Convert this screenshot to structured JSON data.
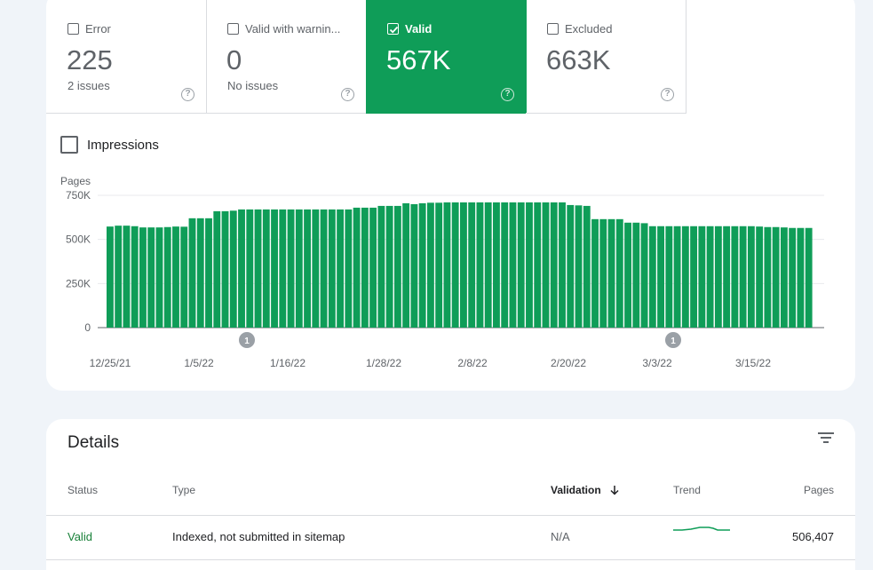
{
  "tiles": [
    {
      "label": "Error",
      "value": "225",
      "sub": "2 issues",
      "checked": false
    },
    {
      "label": "Valid with warnin...",
      "value": "0",
      "sub": "No issues",
      "checked": false
    },
    {
      "label": "Valid",
      "value": "567K",
      "sub": "",
      "checked": true
    },
    {
      "label": "Excluded",
      "value": "663K",
      "sub": "",
      "checked": false
    }
  ],
  "help_glyph": "?",
  "impressions_label": "Impressions",
  "chart_data": {
    "type": "bar",
    "ylabel": "Pages",
    "yticks": [
      "0",
      "250K",
      "500K",
      "750K"
    ],
    "ylim": [
      0,
      750000
    ],
    "xticks": [
      "12/25/21",
      "1/5/22",
      "1/16/22",
      "1/28/22",
      "2/8/22",
      "2/20/22",
      "3/3/22",
      "3/15/22"
    ],
    "bar_color": "#0f9d58",
    "grid": true,
    "annotations": [
      "1",
      "1"
    ],
    "values": [
      573000,
      578000,
      578000,
      575000,
      568000,
      568000,
      568000,
      570000,
      573000,
      572000,
      620000,
      620000,
      620000,
      660000,
      660000,
      663000,
      670000,
      670000,
      670000,
      670000,
      670000,
      670000,
      670000,
      670000,
      670000,
      670000,
      670000,
      670000,
      670000,
      670000,
      680000,
      680000,
      680000,
      690000,
      690000,
      690000,
      705000,
      700000,
      705000,
      708000,
      708000,
      710000,
      710000,
      710000,
      710000,
      710000,
      710000,
      710000,
      710000,
      710000,
      710000,
      710000,
      710000,
      710000,
      710000,
      710000,
      695000,
      693000,
      690000,
      615000,
      615000,
      615000,
      615000,
      595000,
      595000,
      592000,
      575000,
      575000,
      575000,
      575000,
      575000,
      575000,
      575000,
      575000,
      575000,
      575000,
      575000,
      575000,
      575000,
      573000,
      570000,
      570000,
      568000,
      565000,
      565000,
      565000
    ]
  },
  "details": {
    "title": "Details",
    "columns": {
      "status": "Status",
      "type": "Type",
      "validation": "Validation",
      "trend": "Trend",
      "pages": "Pages"
    },
    "rows": [
      {
        "status": "Valid",
        "type": "Indexed, not submitted in sitemap",
        "validation": "N/A",
        "pages": "506,407"
      }
    ]
  },
  "colors": {
    "valid": "#0f9d58",
    "status_text": "#188038"
  }
}
